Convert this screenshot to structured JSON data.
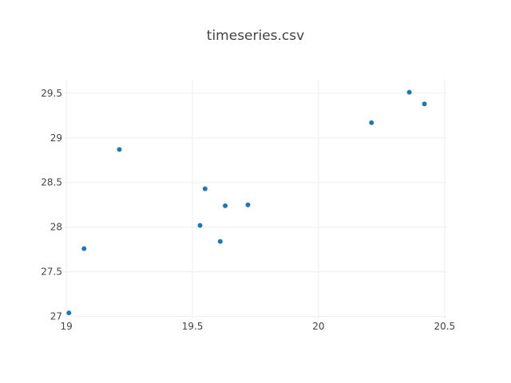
{
  "chart_data": {
    "type": "scatter",
    "title": "timeseries.csv",
    "xlabel": "",
    "ylabel": "",
    "xlim": [
      18.99,
      20.51
    ],
    "ylim": [
      26.97,
      29.65
    ],
    "xticks": [
      19,
      19.5,
      20,
      20.5
    ],
    "xtick_labels": [
      "19",
      "19.5",
      "20",
      "20.5"
    ],
    "yticks": [
      27,
      27.5,
      28,
      28.5,
      29,
      29.5
    ],
    "ytick_labels": [
      "27",
      "27.5",
      "28",
      "28.5",
      "29",
      "29.5"
    ],
    "grid": true,
    "marker_color": "#1f77b4",
    "series": [
      {
        "x": [
          19.01,
          19.07,
          19.21,
          19.53,
          19.55,
          19.61,
          19.63,
          19.72,
          20.21,
          20.36,
          20.42
        ],
        "y": [
          27.04,
          27.76,
          28.87,
          28.02,
          28.43,
          27.84,
          28.24,
          28.25,
          29.17,
          29.51,
          29.38
        ]
      }
    ]
  }
}
